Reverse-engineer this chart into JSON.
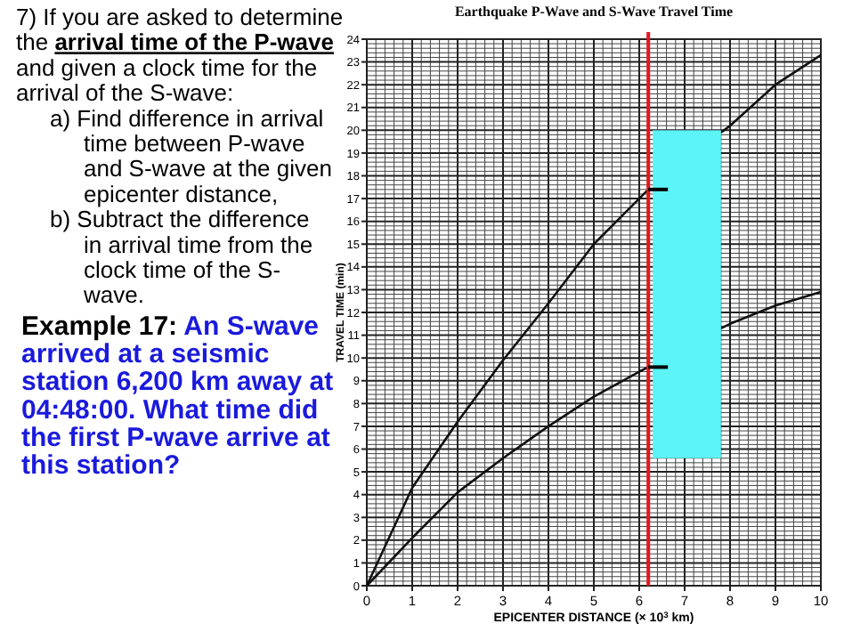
{
  "chart_data": {
    "type": "line",
    "title": "Earthquake P-Wave and S-Wave Travel Time",
    "xlabel": "EPICENTER DISTANCE (× 10$^{3}$ km)",
    "ylabel": "TRAVEL TIME (min)",
    "xlim": [
      0,
      10
    ],
    "xticks": [
      0,
      1,
      2,
      3,
      4,
      5,
      6,
      7,
      8,
      9,
      10
    ],
    "ylim": [
      0,
      24
    ],
    "yticks": [
      0,
      1,
      2,
      3,
      4,
      5,
      6,
      7,
      8,
      9,
      10,
      11,
      12,
      13,
      14,
      15,
      16,
      17,
      18,
      19,
      20,
      21,
      22,
      23,
      24
    ],
    "grid": true,
    "marker": "none",
    "line_style": "solid",
    "series": [
      {
        "color": "#111111",
        "x": [
          0,
          1,
          2,
          3,
          4,
          5,
          6,
          6.2,
          7,
          7.8,
          8,
          9,
          10
        ],
        "values": [
          0,
          4.3,
          7.2,
          9.9,
          12.4,
          15.0,
          17.0,
          17.4,
          null,
          19.9,
          20.2,
          22.0,
          23.3
        ]
      },
      {
        "color": "#111111",
        "x": [
          0,
          1,
          2,
          3,
          4,
          5,
          6,
          6.2,
          7,
          7.8,
          8,
          9,
          10
        ],
        "values": [
          0,
          2.1,
          4.1,
          5.6,
          7.0,
          8.3,
          9.4,
          9.6,
          null,
          11.3,
          11.5,
          12.3,
          12.9
        ]
      }
    ],
    "ref_lines": [
      {
        "axis": "x",
        "value": 6.2,
        "color": "#e3161c"
      }
    ],
    "annotations": [
      "7) If you are asked to determine",
      "the arrival time of the P-wave",
      "and given a clock time for the",
      "arrival of the S-wave:",
      "a) Find difference in arrival",
      "time between P-wave",
      "and S-wave at the given",
      "epicenter distance,",
      "b) Subtract the difference",
      "in arrival time from the",
      "clock time of the S-",
      "wave.",
      "Example 17: An S-wave",
      "arrived at a seismic",
      "station 6,200 km away at",
      "04:48:00. What time did",
      "the first P-wave arrive at",
      "this station?"
    ]
  }
}
